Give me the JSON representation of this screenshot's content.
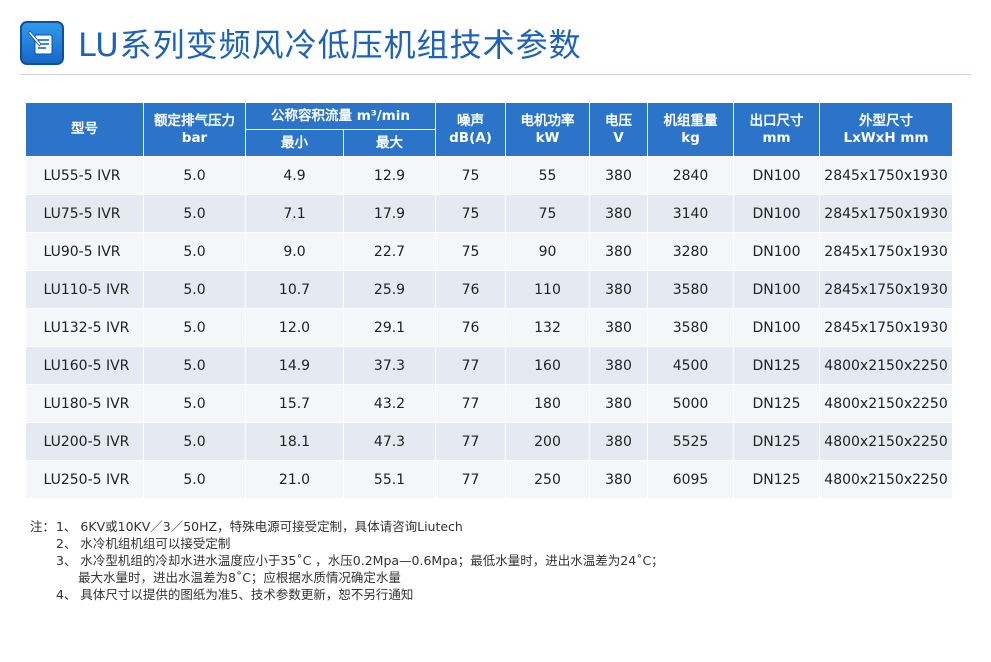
{
  "title": "LU系列变频风冷低压机组技术参数",
  "logo": {
    "icon": "document-icon",
    "color": "#1e62b8"
  },
  "table": {
    "headers": {
      "model": "型号",
      "pressure": [
        "额定排气压力",
        "bar"
      ],
      "flow": "公称容积流量 m³/min",
      "flow_min": "最小",
      "flow_max": "最大",
      "noise": [
        "噪声",
        "dB(A)"
      ],
      "power": [
        "电机功率",
        "kW"
      ],
      "voltage": [
        "电压",
        "V"
      ],
      "weight": [
        "机组重量",
        "kg"
      ],
      "outlet": [
        "出口尺寸",
        "mm"
      ],
      "dimensions": [
        "外型尺寸",
        "LxWxH mm"
      ]
    },
    "rows": [
      [
        "LU55-5 IVR",
        "5.0",
        "4.9",
        "12.9",
        "75",
        "55",
        "380",
        "2840",
        "DN100",
        "2845x1750x1930"
      ],
      [
        "LU75-5 IVR",
        "5.0",
        "7.1",
        "17.9",
        "75",
        "75",
        "380",
        "3140",
        "DN100",
        "2845x1750x1930"
      ],
      [
        "LU90-5 IVR",
        "5.0",
        "9.0",
        "22.7",
        "75",
        "90",
        "380",
        "3280",
        "DN100",
        "2845x1750x1930"
      ],
      [
        "LU110-5 IVR",
        "5.0",
        "10.7",
        "25.9",
        "76",
        "110",
        "380",
        "3580",
        "DN100",
        "2845x1750x1930"
      ],
      [
        "LU132-5 IVR",
        "5.0",
        "12.0",
        "29.1",
        "76",
        "132",
        "380",
        "3580",
        "DN100",
        "2845x1750x1930"
      ],
      [
        "LU160-5 IVR",
        "5.0",
        "14.9",
        "37.3",
        "77",
        "160",
        "380",
        "4500",
        "DN125",
        "4800x2150x2250"
      ],
      [
        "LU180-5 IVR",
        "5.0",
        "15.7",
        "43.2",
        "77",
        "180",
        "380",
        "5000",
        "DN125",
        "4800x2150x2250"
      ],
      [
        "LU200-5 IVR",
        "5.0",
        "18.1",
        "47.3",
        "77",
        "200",
        "380",
        "5525",
        "DN125",
        "4800x2150x2250"
      ],
      [
        "LU250-5 IVR",
        "5.0",
        "21.0",
        "55.1",
        "77",
        "250",
        "380",
        "6095",
        "DN125",
        "4800x2150x2250"
      ]
    ]
  },
  "notes": {
    "prefix": "注：",
    "lines": [
      "1、 6KV或10KV／3／50HZ，特殊电源可接受定制，具体请咨询Liutech",
      "2、 水冷机组机组可以接受定制",
      "3、 水冷型机组的冷却水进水温度应小于35˚C ，水压0.2Mpa—0.6Mpa；最低水量时，进出水温差为24˚C；",
      "最大水量时，进出水温差为8˚C；应根据水质情况确定水量",
      "4、 具体尺寸以提供的图纸为准5、技术参数更新，恕不另行通知"
    ]
  }
}
